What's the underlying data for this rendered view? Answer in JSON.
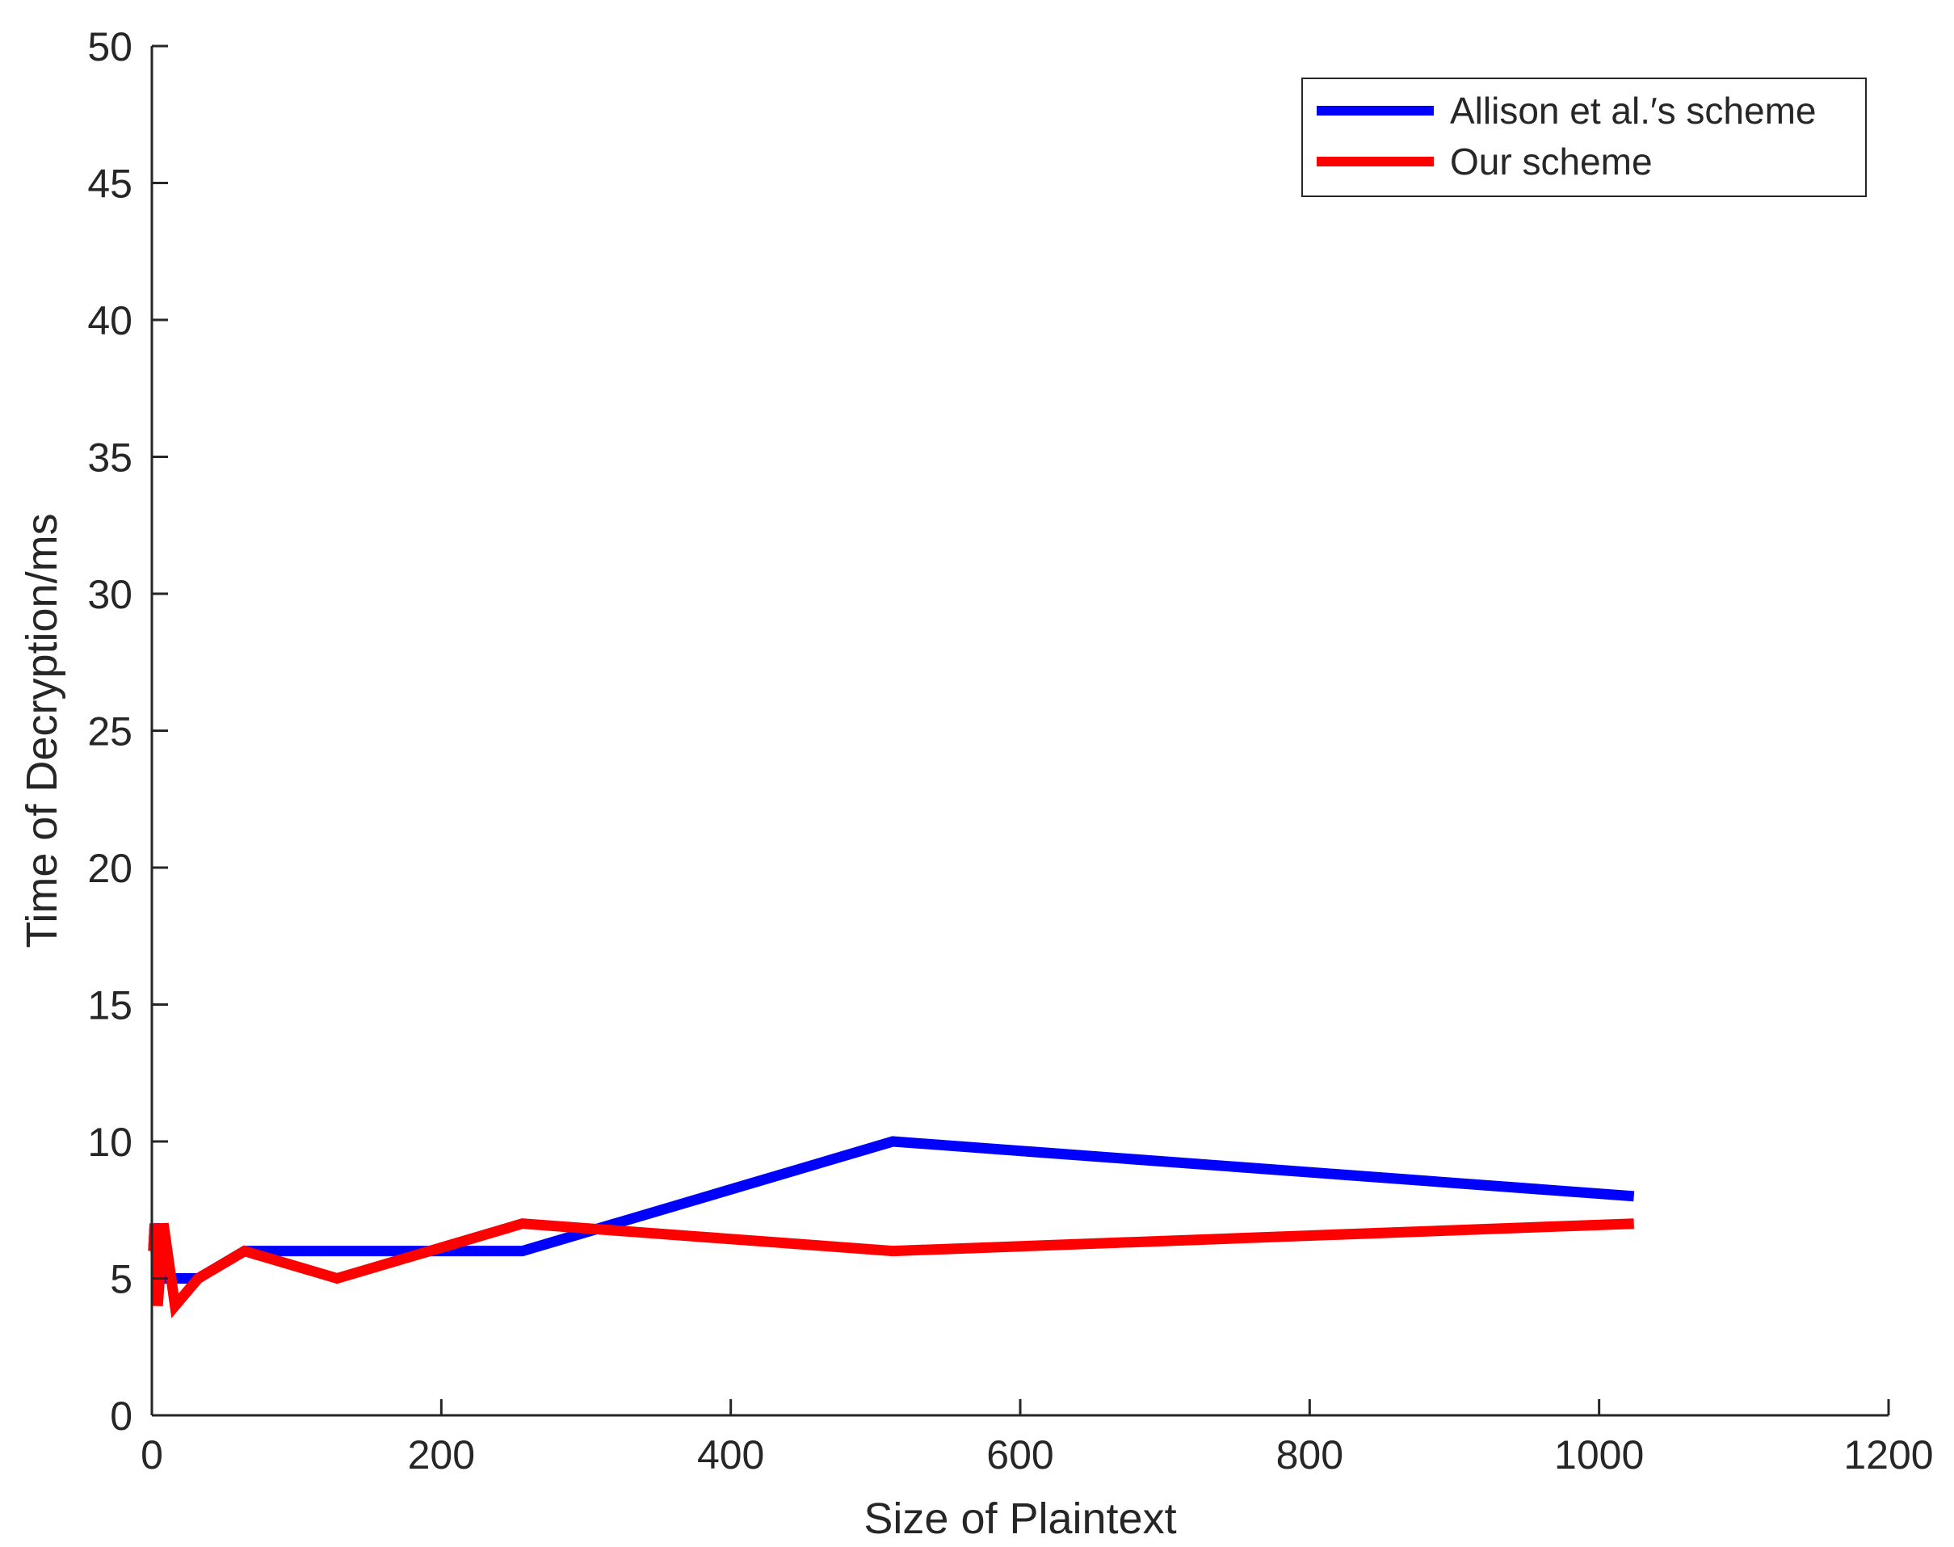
{
  "chart_data": {
    "type": "line",
    "xlabel": "Size of Plaintext",
    "ylabel": "Time of Decryption/ms",
    "xlim": [
      0,
      1200
    ],
    "ylim": [
      0,
      50
    ],
    "xticks": [
      0,
      200,
      400,
      600,
      800,
      1000,
      1200
    ],
    "yticks": [
      0,
      5,
      10,
      15,
      20,
      25,
      30,
      35,
      40,
      45,
      50
    ],
    "grid": false,
    "legend_position": "top-right",
    "series": [
      {
        "name": "Allison et al.′s scheme",
        "color": "#0000ff",
        "x": [
          1,
          2,
          4,
          8,
          16,
          32,
          64,
          128,
          256,
          512,
          1024
        ],
        "y": [
          6,
          7,
          6,
          5,
          5,
          5,
          6,
          6,
          6,
          10,
          8
        ]
      },
      {
        "name": "Our scheme",
        "color": "#ff0000",
        "x": [
          1,
          2,
          4,
          8,
          16,
          32,
          64,
          128,
          256,
          512,
          1024
        ],
        "y": [
          6,
          7,
          4,
          7,
          4,
          5,
          6,
          5,
          7,
          6,
          7
        ]
      }
    ]
  }
}
